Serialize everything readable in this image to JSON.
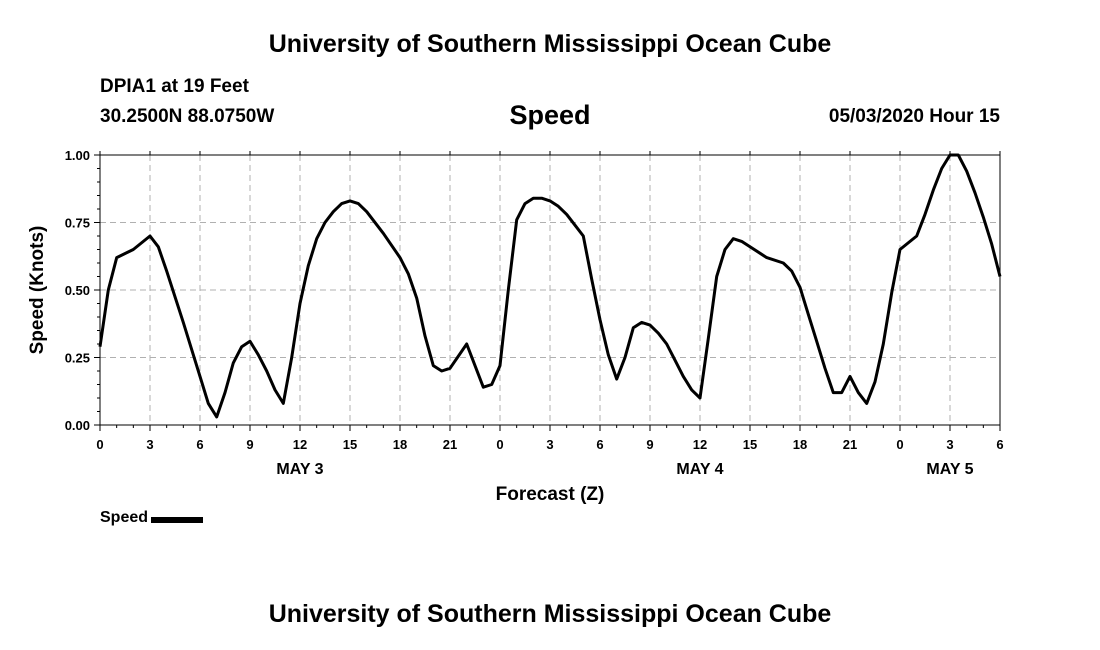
{
  "header": {
    "top_title": "University of Southern Mississippi Ocean Cube",
    "station": "DPIA1 at 19 Feet",
    "coordinates": "30.2500N 88.0750W",
    "datetime": "05/03/2020 Hour 15",
    "bottom_title": "University of Southern Mississippi Ocean Cube"
  },
  "chart_data": {
    "type": "line",
    "title": "Speed",
    "xlabel": "Forecast (Z)",
    "ylabel": "Speed (Knots)",
    "ylim": [
      0,
      1
    ],
    "xlim_hours": [
      0,
      54
    ],
    "grid": true,
    "legend": {
      "position": "bottom-left",
      "label": "Speed"
    },
    "x_tick_labels": [
      "0",
      "3",
      "6",
      "9",
      "12",
      "15",
      "18",
      "21",
      "0",
      "3",
      "6",
      "9",
      "12",
      "15",
      "18",
      "21",
      "0",
      "3",
      "6"
    ],
    "x_tick_hours": [
      0,
      3,
      6,
      9,
      12,
      15,
      18,
      21,
      24,
      27,
      30,
      33,
      36,
      39,
      42,
      45,
      48,
      51,
      54
    ],
    "y_ticks": [
      "0.00",
      "0.25",
      "0.50",
      "0.75",
      "1.00"
    ],
    "y_tick_values": [
      0,
      0.25,
      0.5,
      0.75,
      1.0
    ],
    "day_labels": [
      {
        "label": "MAY 3",
        "hour": 12
      },
      {
        "label": "MAY 4",
        "hour": 36
      },
      {
        "label": "MAY 5",
        "hour": 51
      }
    ],
    "series": [
      {
        "name": "Speed",
        "color": "#000000",
        "x": [
          0,
          0.5,
          1,
          2,
          3,
          3.5,
          4,
          5,
          6,
          6.5,
          7,
          7.5,
          8,
          8.5,
          9,
          9.5,
          10,
          10.5,
          11,
          11.5,
          12,
          12.5,
          13,
          13.5,
          14,
          14.5,
          15,
          15.5,
          16,
          17,
          18,
          18.5,
          19,
          19.5,
          20,
          20.5,
          21,
          22,
          23,
          23.5,
          24,
          24.5,
          25,
          25.5,
          26,
          26.5,
          27,
          27.5,
          28,
          28.5,
          29,
          29.5,
          30,
          30.5,
          31,
          31.5,
          32,
          32.5,
          33,
          33.5,
          34,
          34.5,
          35,
          35.5,
          36,
          36.5,
          37,
          37.5,
          38,
          38.5,
          39,
          40,
          41,
          41.5,
          42,
          42.5,
          43,
          43.5,
          44,
          44.5,
          45,
          45.5,
          46,
          46.5,
          47,
          47.5,
          48,
          49,
          49.5,
          50,
          50.5,
          51,
          51.5,
          52,
          52.5,
          53,
          53.5,
          54
        ],
        "values": [
          0.29,
          0.5,
          0.62,
          0.65,
          0.7,
          0.66,
          0.57,
          0.38,
          0.18,
          0.08,
          0.03,
          0.12,
          0.23,
          0.29,
          0.31,
          0.26,
          0.2,
          0.13,
          0.08,
          0.25,
          0.45,
          0.59,
          0.69,
          0.75,
          0.79,
          0.82,
          0.83,
          0.82,
          0.79,
          0.71,
          0.62,
          0.56,
          0.47,
          0.33,
          0.22,
          0.2,
          0.21,
          0.3,
          0.14,
          0.15,
          0.22,
          0.5,
          0.76,
          0.82,
          0.84,
          0.84,
          0.83,
          0.81,
          0.78,
          0.74,
          0.7,
          0.54,
          0.39,
          0.26,
          0.17,
          0.25,
          0.36,
          0.38,
          0.37,
          0.34,
          0.3,
          0.24,
          0.18,
          0.13,
          0.1,
          0.32,
          0.55,
          0.65,
          0.69,
          0.68,
          0.66,
          0.62,
          0.6,
          0.57,
          0.51,
          0.41,
          0.31,
          0.21,
          0.12,
          0.12,
          0.18,
          0.12,
          0.08,
          0.16,
          0.3,
          0.49,
          0.65,
          0.7,
          0.78,
          0.87,
          0.95,
          1.0,
          1.0,
          0.94,
          0.86,
          0.77,
          0.67,
          0.55
        ]
      }
    ]
  }
}
